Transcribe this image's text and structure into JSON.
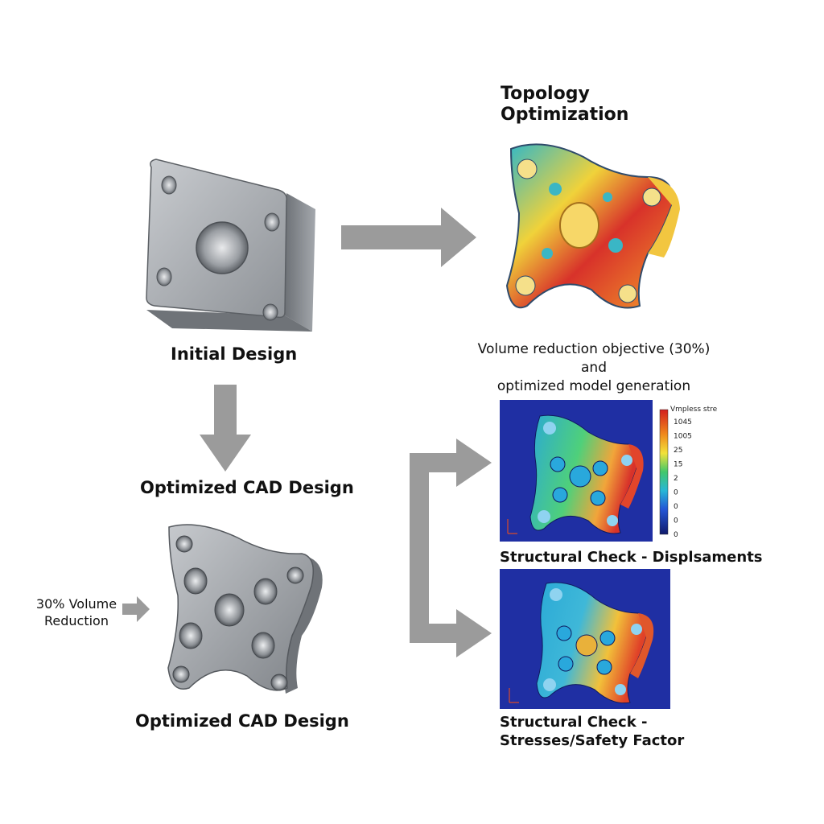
{
  "stages": {
    "initial": {
      "label": "Initial Design"
    },
    "topology": {
      "title_line1": "Topology",
      "title_line2": "Optimization",
      "caption_line1": "Volume reduction objective (30%) and",
      "caption_line2": "optimized model generation"
    },
    "optimized_cad_top": {
      "label": "Optimized CAD Design"
    },
    "optimized_cad_bottom": {
      "label": "Optimized CAD Design"
    },
    "volume_note": {
      "line1": "30% Volume",
      "line2": "Reduction"
    },
    "check_displacements": {
      "label": "Structural Check - Displsaments"
    },
    "check_stresses": {
      "label_line1": "Structural Check -",
      "label_line2": "Stresses/Safety Factor"
    }
  },
  "legend": {
    "title": "Vmpless stress",
    "values": [
      "1045",
      "1005",
      "25",
      "15",
      "2",
      "0",
      "0",
      "0",
      "0"
    ]
  },
  "colors": {
    "arrow": "#9b9b9b",
    "sim_background": "#1f2fa3",
    "metal": "#9ea2a8"
  }
}
